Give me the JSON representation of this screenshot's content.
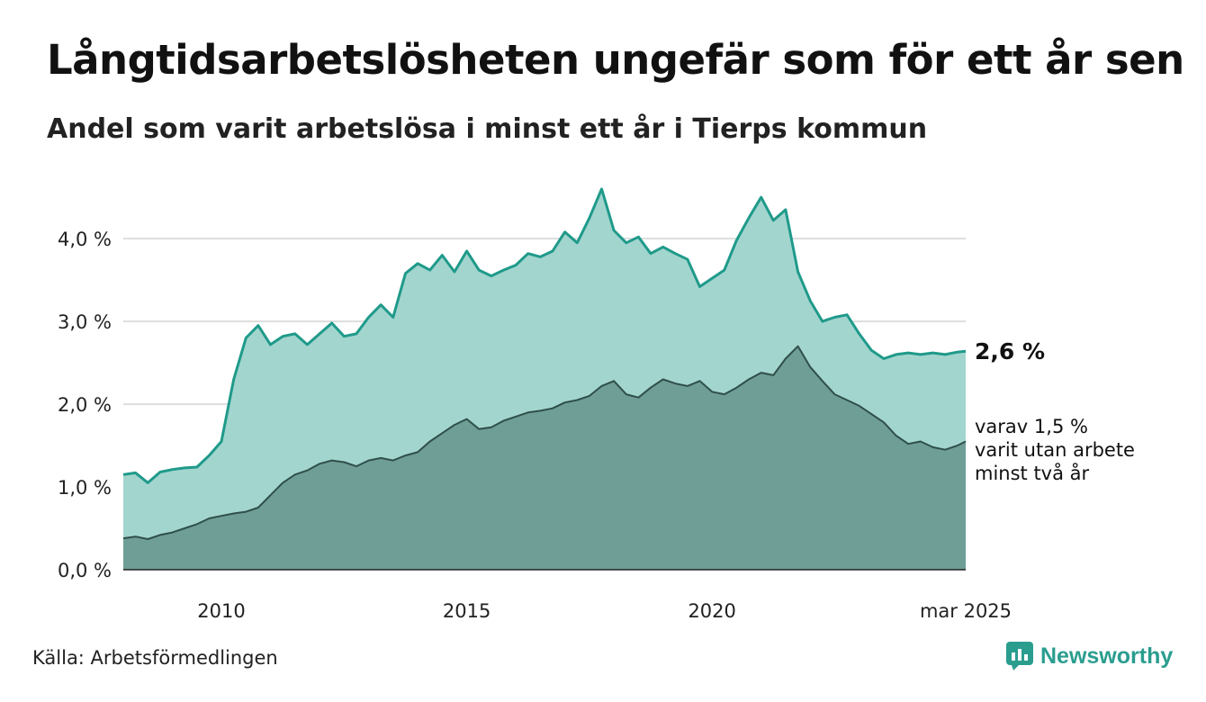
{
  "header": {
    "title": "Långtidsarbetslösheten ungefär som för ett år sen",
    "subtitle": "Andel som varit arbetslösa i minst ett år i Tierps kommun"
  },
  "footer": {
    "source": "Källa: Arbetsförmedlingen",
    "brand": "Newsworthy",
    "brand_icon": "newsworthy-logo-icon"
  },
  "colors": {
    "upper_fill": "#a3d5cf",
    "upper_line": "#1f9a8a",
    "lower_fill": "#6f9e97",
    "lower_line": "#2f4f4a",
    "grid": "#dddddd",
    "brand": "#2a9d8f"
  },
  "chart_data": {
    "type": "area",
    "x_start": "2008-01",
    "x_end": "2025-03",
    "x_ticks": [
      {
        "value": 2010.0,
        "label": "2010"
      },
      {
        "value": 2015.0,
        "label": "2015"
      },
      {
        "value": 2020.0,
        "label": "2020"
      },
      {
        "value": 2025.17,
        "label": "mar 2025"
      }
    ],
    "y_ticks": [
      {
        "value": 0,
        "label": "0,0 %"
      },
      {
        "value": 1,
        "label": "1,0 %"
      },
      {
        "value": 2,
        "label": "2,0 %"
      },
      {
        "value": 3,
        "label": "3,0 %"
      },
      {
        "value": 4,
        "label": "4,0 %"
      }
    ],
    "ylim": [
      0,
      4.6
    ],
    "grid": true,
    "series": [
      {
        "key": "minst_ett_ar",
        "end_label": "2,6 %",
        "x": [
          2008.0,
          2008.25,
          2008.5,
          2008.75,
          2009.0,
          2009.25,
          2009.5,
          2009.75,
          2010.0,
          2010.25,
          2010.5,
          2010.75,
          2011.0,
          2011.25,
          2011.5,
          2011.75,
          2012.0,
          2012.25,
          2012.5,
          2012.75,
          2013.0,
          2013.25,
          2013.5,
          2013.75,
          2014.0,
          2014.25,
          2014.5,
          2014.75,
          2015.0,
          2015.25,
          2015.5,
          2015.75,
          2016.0,
          2016.25,
          2016.5,
          2016.75,
          2017.0,
          2017.25,
          2017.5,
          2017.75,
          2018.0,
          2018.25,
          2018.5,
          2018.75,
          2019.0,
          2019.25,
          2019.5,
          2019.75,
          2020.0,
          2020.25,
          2020.5,
          2020.75,
          2021.0,
          2021.25,
          2021.5,
          2021.75,
          2022.0,
          2022.25,
          2022.5,
          2022.75,
          2023.0,
          2023.25,
          2023.5,
          2023.75,
          2024.0,
          2024.25,
          2024.5,
          2024.75,
          2025.0,
          2025.17
        ],
        "y": [
          1.15,
          1.17,
          1.05,
          1.18,
          1.21,
          1.23,
          1.24,
          1.38,
          1.55,
          2.3,
          2.8,
          2.95,
          2.72,
          2.82,
          2.85,
          2.72,
          2.85,
          2.98,
          2.82,
          2.85,
          3.05,
          3.2,
          3.05,
          3.58,
          3.7,
          3.62,
          3.8,
          3.6,
          3.85,
          3.62,
          3.55,
          3.62,
          3.68,
          3.82,
          3.78,
          3.85,
          4.08,
          3.95,
          4.25,
          4.6,
          4.1,
          3.95,
          4.02,
          3.82,
          3.9,
          3.82,
          3.75,
          3.42,
          3.52,
          3.62,
          3.98,
          4.25,
          4.5,
          4.22,
          4.35,
          3.6,
          3.25,
          3.0,
          3.05,
          3.08,
          2.85,
          2.65,
          2.55,
          2.6,
          2.62,
          2.6,
          2.62,
          2.6,
          2.63,
          2.64
        ]
      },
      {
        "key": "minst_tva_ar",
        "end_label": "varav 1,5 %\nvarit utan arbete\nminst två år",
        "x": [
          2008.0,
          2008.25,
          2008.5,
          2008.75,
          2009.0,
          2009.25,
          2009.5,
          2009.75,
          2010.0,
          2010.25,
          2010.5,
          2010.75,
          2011.0,
          2011.25,
          2011.5,
          2011.75,
          2012.0,
          2012.25,
          2012.5,
          2012.75,
          2013.0,
          2013.25,
          2013.5,
          2013.75,
          2014.0,
          2014.25,
          2014.5,
          2014.75,
          2015.0,
          2015.25,
          2015.5,
          2015.75,
          2016.0,
          2016.25,
          2016.5,
          2016.75,
          2017.0,
          2017.25,
          2017.5,
          2017.75,
          2018.0,
          2018.25,
          2018.5,
          2018.75,
          2019.0,
          2019.25,
          2019.5,
          2019.75,
          2020.0,
          2020.25,
          2020.5,
          2020.75,
          2021.0,
          2021.25,
          2021.5,
          2021.75,
          2022.0,
          2022.25,
          2022.5,
          2022.75,
          2023.0,
          2023.25,
          2023.5,
          2023.75,
          2024.0,
          2024.25,
          2024.5,
          2024.75,
          2025.0,
          2025.17
        ],
        "y": [
          0.38,
          0.4,
          0.37,
          0.42,
          0.45,
          0.5,
          0.55,
          0.62,
          0.65,
          0.68,
          0.7,
          0.75,
          0.9,
          1.05,
          1.15,
          1.2,
          1.28,
          1.32,
          1.3,
          1.25,
          1.32,
          1.35,
          1.32,
          1.38,
          1.42,
          1.55,
          1.65,
          1.75,
          1.82,
          1.7,
          1.72,
          1.8,
          1.85,
          1.9,
          1.92,
          1.95,
          2.02,
          2.05,
          2.1,
          2.22,
          2.28,
          2.12,
          2.08,
          2.2,
          2.3,
          2.25,
          2.22,
          2.28,
          2.15,
          2.12,
          2.2,
          2.3,
          2.38,
          2.35,
          2.55,
          2.7,
          2.45,
          2.28,
          2.12,
          2.05,
          1.98,
          1.88,
          1.78,
          1.62,
          1.52,
          1.55,
          1.48,
          1.45,
          1.5,
          1.55
        ]
      }
    ]
  }
}
